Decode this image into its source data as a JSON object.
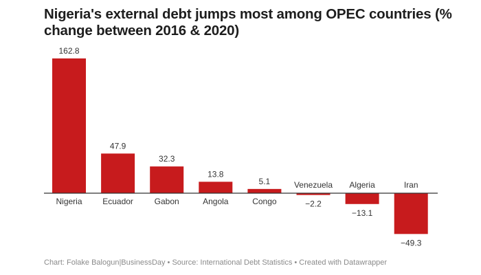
{
  "chart_data": {
    "type": "bar",
    "title": "Nigeria's external debt jumps most among OPEC countries (% change between 2016 & 2020)",
    "categories": [
      "Nigeria",
      "Ecuador",
      "Gabon",
      "Angola",
      "Congo",
      "Venezuela",
      "Algeria",
      "Iran"
    ],
    "values": [
      162.8,
      47.9,
      32.3,
      13.8,
      5.1,
      -2.2,
      -13.1,
      -49.3
    ],
    "value_labels": [
      "162.8",
      "47.9",
      "32.3",
      "13.8",
      "5.1",
      "−2.2",
      "−13.1",
      "−49.3"
    ],
    "bar_color": "#c71b1d",
    "grid": false,
    "footer": "Chart: Folake Balogun|BusinessDay • Source: International Debt Statistics • Created with Datawrapper"
  }
}
